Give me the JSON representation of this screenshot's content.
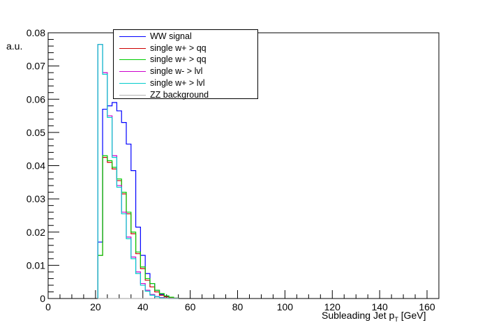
{
  "chart_data": {
    "type": "line",
    "title": "",
    "xlabel": "Subleading Jet p",
    "xlabel_subscript": "T",
    "xlabel_unit": "[GeV]",
    "ylabel": "a.u.",
    "xlim": [
      0,
      165
    ],
    "ylim": [
      0,
      0.08
    ],
    "x_ticks": [
      0,
      20,
      40,
      60,
      80,
      100,
      120,
      140,
      160
    ],
    "y_ticks": [
      "0",
      "0.01",
      "0.02",
      "0.03",
      "0.04",
      "0.05",
      "0.06",
      "0.07",
      "0.08"
    ],
    "bin_edges": [
      21,
      23,
      25,
      27,
      29,
      31,
      33,
      35,
      37,
      39,
      41,
      43,
      45,
      47,
      49,
      51,
      53,
      55
    ],
    "grid": false,
    "legend_position": "top-left",
    "series": [
      {
        "name": "WW signal",
        "color": "#0000ff",
        "values": [
          0.017,
          0.057,
          0.058,
          0.059,
          0.0565,
          0.053,
          0.0465,
          0.0385,
          0.0215,
          0.013,
          0.0075,
          0.0045,
          0.0025,
          0.0012,
          0.0006,
          0.0003,
          0.0001
        ]
      },
      {
        "name": "single w+ > qq",
        "color": "#cc0000",
        "values": [
          0.013,
          0.0425,
          0.041,
          0.039,
          0.0355,
          0.0315,
          0.0255,
          0.0195,
          0.0135,
          0.009,
          0.0055,
          0.0035,
          0.002,
          0.001,
          0.0005,
          0.0003,
          0.0001
        ]
      },
      {
        "name": "single w+ > qq",
        "color": "#00cc00",
        "values": [
          0.013,
          0.043,
          0.0415,
          0.0395,
          0.036,
          0.032,
          0.026,
          0.02,
          0.014,
          0.0095,
          0.006,
          0.0045,
          0.0025,
          0.0015,
          0.0008,
          0.0004,
          0.0001
        ]
      },
      {
        "name": "single w- > lvl",
        "color": "#cc00cc",
        "values": [
          0.0765,
          0.068,
          0.055,
          0.043,
          0.034,
          0.026,
          0.0185,
          0.0125,
          0.008,
          0.0045,
          0.0025,
          0.0012,
          0.0006,
          0.0003,
          0.0001,
          0.0,
          0.0
        ]
      },
      {
        "name": "single w+ > lvl",
        "color": "#00cccc",
        "values": [
          0.0765,
          0.0675,
          0.0545,
          0.0425,
          0.0335,
          0.0255,
          0.018,
          0.012,
          0.0075,
          0.004,
          0.0022,
          0.001,
          0.0005,
          0.0002,
          0.0001,
          0.0,
          0.0
        ]
      },
      {
        "name": "ZZ background",
        "color": "#b0b0b0",
        "values": [
          0.0,
          0.0,
          0.0,
          0.0,
          0.0,
          0.0,
          0.0,
          0.0,
          0.0,
          0.0,
          0.0,
          0.0,
          0.0,
          0.0,
          0.0,
          0.0,
          0.0
        ]
      }
    ]
  }
}
